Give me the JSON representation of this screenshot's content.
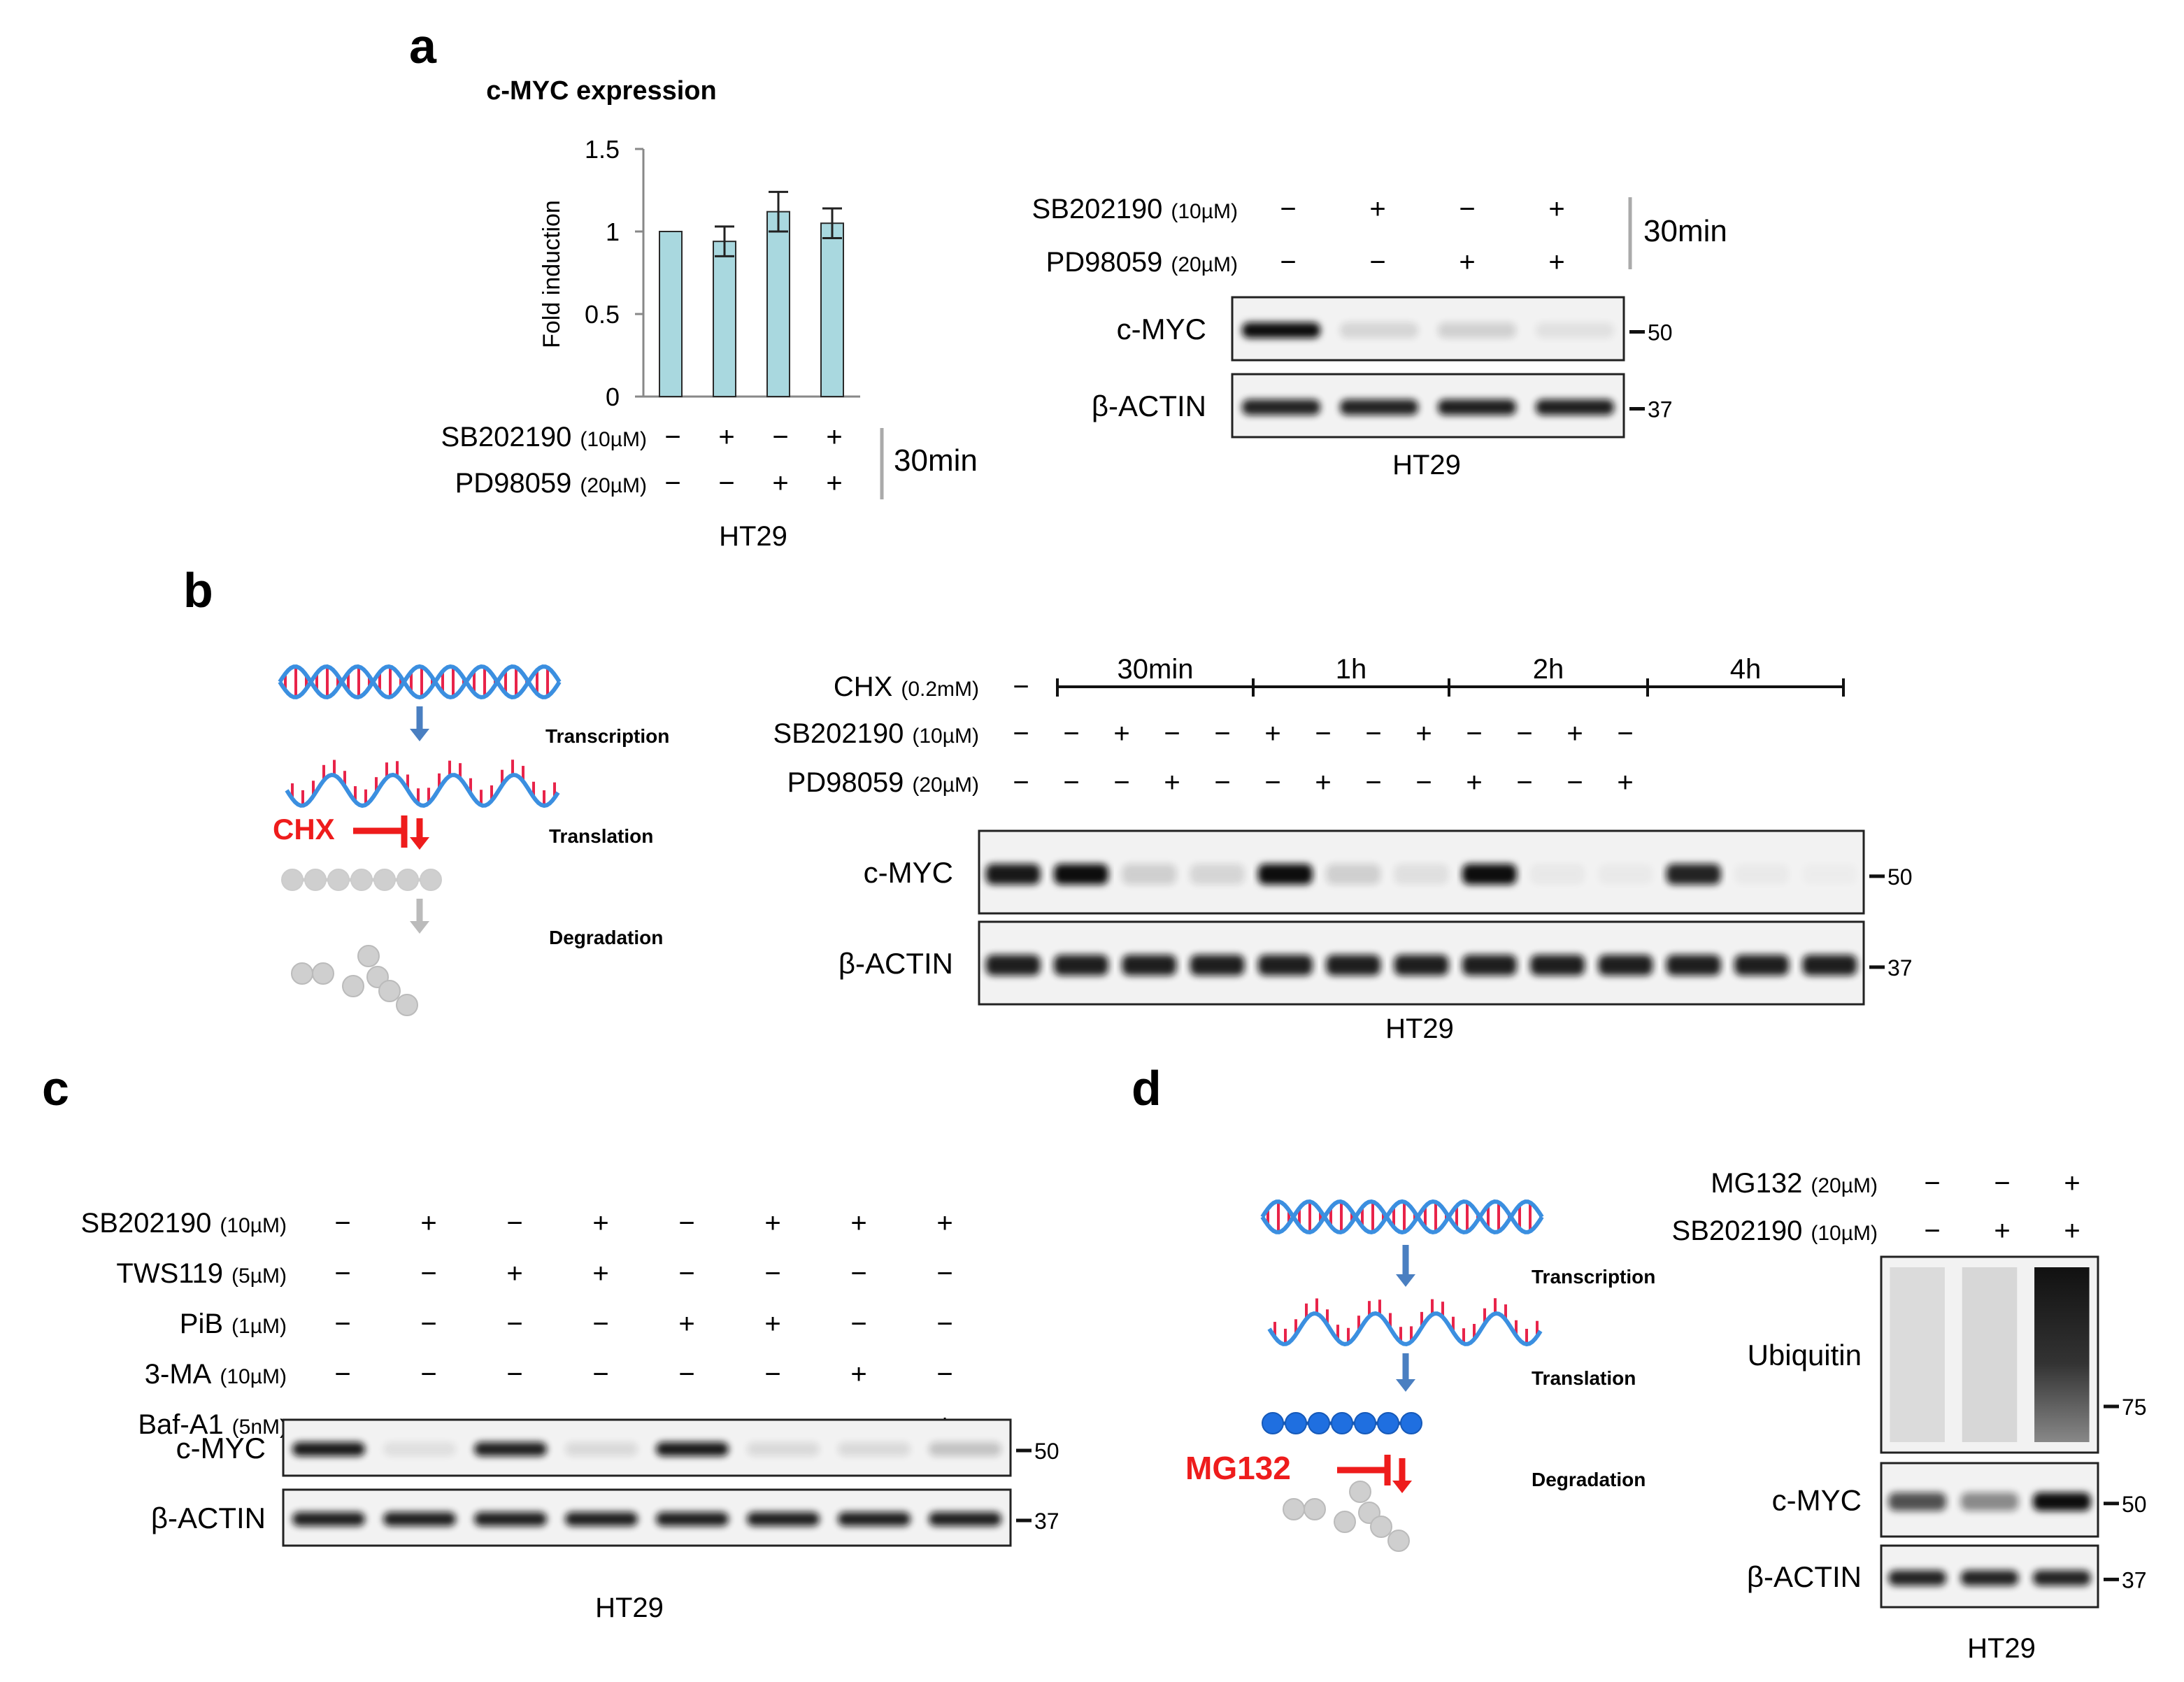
{
  "colors": {
    "bar_fill": "#a9d8df",
    "bar_stroke": "#2a2a2a",
    "dna_blue": "#3b8fe0",
    "dna_red": "#e8244a",
    "inhibitor_red": "#ee1c1c",
    "arrow_blue": "#4a7fc1",
    "arrow_grey": "#bbbbbb",
    "protein_grey": "#cfcfcf",
    "protein_blue": "#1f6fe0",
    "blot_bg": "#f2f2f2"
  },
  "panel_a": {
    "letter": "a",
    "chart_data": {
      "type": "bar",
      "title": "c-MYC expression",
      "ylabel": "Fold induction",
      "ylim": [
        0,
        1.5
      ],
      "yticks": [
        "0",
        "0.5",
        "1",
        "1.5"
      ],
      "categories": [
        "SB202190 − / PD98059 −",
        "SB202190 + / PD98059 −",
        "SB202190 − / PD98059 +",
        "SB202190 + / PD98059 +"
      ],
      "values": [
        1.0,
        0.94,
        1.12,
        1.05
      ],
      "errors": [
        0.0,
        0.09,
        0.12,
        0.09
      ],
      "grid": false
    },
    "treatments": [
      {
        "name": "SB202190",
        "conc": "(10µM)",
        "signs": [
          "−",
          "+",
          "−",
          "+"
        ]
      },
      {
        "name": "PD98059",
        "conc": "(20µM)",
        "signs": [
          "−",
          "−",
          "+",
          "+"
        ]
      }
    ],
    "time": "30min",
    "cell_line": "HT29",
    "blot": {
      "treatments": [
        {
          "name": "SB202190",
          "conc": "(10µM)",
          "signs": [
            "−",
            "+",
            "−",
            "+"
          ]
        },
        {
          "name": "PD98059",
          "conc": "(20µM)",
          "signs": [
            "−",
            "−",
            "+",
            "+"
          ]
        }
      ],
      "time": "30min",
      "rows": [
        {
          "label": "c-MYC",
          "marker": "50",
          "intensity": [
            1.0,
            0.12,
            0.14,
            0.07
          ]
        },
        {
          "label": "β-ACTIN",
          "marker": "37",
          "intensity": [
            0.9,
            0.9,
            0.92,
            0.92
          ]
        }
      ],
      "cell_line": "HT29"
    }
  },
  "panel_b": {
    "letter": "b",
    "diagram": {
      "steps": [
        "Transcription",
        "Translation",
        "Degradation"
      ],
      "inhibitor": "CHX"
    },
    "cells": {
      "cells": [
        {
          "label": "CHX",
          "conc": "(0.2mM)",
          "signs": [
            "−"
          ]
        }
      ],
      "time_groups": [
        "30min",
        "1h",
        "2h",
        "4h"
      ],
      "rows": [
        {
          "name": "SB202190",
          "conc": "(10µM)",
          "signs": [
            "−",
            "−",
            "+",
            "−",
            "−",
            "+",
            "−",
            "−",
            "+",
            "−",
            "−",
            "+",
            "−"
          ]
        },
        {
          "name": "PD98059",
          "conc": "(20µM)",
          "signs": [
            "−",
            "−",
            "−",
            "+",
            "−",
            "−",
            "+",
            "−",
            "−",
            "+",
            "−",
            "−",
            "+"
          ]
        }
      ],
      "blot_rows": [
        {
          "label": "c-MYC",
          "marker": "50",
          "intensity": [
            0.95,
            1.0,
            0.15,
            0.12,
            1.0,
            0.15,
            0.08,
            1.0,
            0.04,
            0.03,
            0.9,
            0.03,
            0.02
          ]
        },
        {
          "label": "β-ACTIN",
          "marker": "37",
          "intensity": [
            0.92,
            0.92,
            0.92,
            0.92,
            0.92,
            0.92,
            0.92,
            0.92,
            0.92,
            0.92,
            0.92,
            0.92,
            0.92
          ]
        }
      ],
      "cell_line": "HT29"
    }
  },
  "panel_c": {
    "letter": "c",
    "rows": [
      {
        "name": "SB202190",
        "conc": "(10µM)",
        "signs": [
          "−",
          "+",
          "−",
          "+",
          "−",
          "+",
          "+",
          "+"
        ]
      },
      {
        "name": "TWS119",
        "conc": "(5µM)",
        "signs": [
          "−",
          "−",
          "+",
          "+",
          "−",
          "−",
          "−",
          "−"
        ]
      },
      {
        "name": "PiB",
        "conc": "(1µM)",
        "signs": [
          "−",
          "−",
          "−",
          "−",
          "+",
          "+",
          "−",
          "−"
        ]
      },
      {
        "name": "3-MA",
        "conc": "(10µM)",
        "signs": [
          "−",
          "−",
          "−",
          "−",
          "−",
          "−",
          "+",
          "−"
        ]
      },
      {
        "name": "Baf-A1",
        "conc": "(5nM)",
        "signs": [
          "−",
          "−",
          "−",
          "−",
          "−",
          "−",
          "−",
          "+"
        ]
      }
    ],
    "blot_rows": [
      {
        "label": "c-MYC",
        "marker": "50",
        "intensity": [
          0.95,
          0.08,
          0.92,
          0.1,
          0.95,
          0.1,
          0.1,
          0.2
        ]
      },
      {
        "label": "β-ACTIN",
        "marker": "37",
        "intensity": [
          0.92,
          0.92,
          0.92,
          0.92,
          0.92,
          0.92,
          0.92,
          0.92
        ]
      }
    ],
    "cell_line": "HT29"
  },
  "panel_d": {
    "letter": "d",
    "diagram": {
      "steps": [
        "Transcription",
        "Translation",
        "Degradation"
      ],
      "inhibitor": "MG132"
    },
    "rows": [
      {
        "name": "MG132",
        "conc": "(20µM)",
        "signs": [
          "−",
          "−",
          "+"
        ]
      },
      {
        "name": "SB202190",
        "conc": "(10µM)",
        "signs": [
          "−",
          "+",
          "+"
        ]
      }
    ],
    "blot_rows": [
      {
        "label": "Ubiquitin",
        "marker": "75",
        "intensity": [
          0.25,
          0.3,
          1.0
        ]
      },
      {
        "label": "c-MYC",
        "marker": "50",
        "intensity": [
          0.7,
          0.45,
          1.0
        ]
      },
      {
        "label": "β-ACTIN",
        "marker": "37",
        "intensity": [
          0.9,
          0.9,
          0.9
        ]
      }
    ],
    "cell_line": "HT29"
  }
}
